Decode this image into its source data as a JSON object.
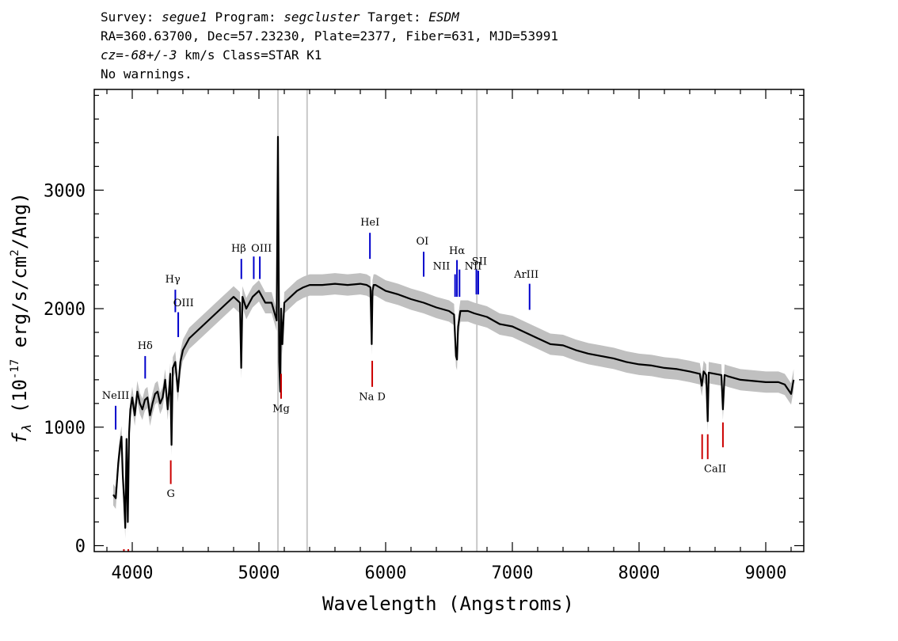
{
  "header": {
    "survey_label": "Survey:",
    "survey": "segue1",
    "program_label": "Program:",
    "program": "segcluster",
    "target_label": "Target:",
    "target": "ESDM",
    "line2": "RA=360.63700, Dec=57.23230, Plate=2377, Fiber=631, MJD=53991",
    "cz_label": "cz",
    "cz_value": "=-68+/-3",
    "cz_rest": " km/s Class=STAR K1",
    "warnings": "No warnings."
  },
  "colors": {
    "spectrum": "#000000",
    "error_band": "#c0c0c0",
    "emission": "#0000cc",
    "absorption": "#cc0000",
    "masked": "#c8c8c8"
  },
  "chart_data": {
    "type": "line",
    "xlabel": "Wavelength (Angstroms)",
    "ylabel": "f_λ (10⁻¹⁷ erg/s/cm²/Ang)",
    "ylabel_parts": [
      "f",
      "λ",
      " (10",
      "-17",
      " erg/s/cm",
      "2",
      "/Ang)"
    ],
    "xlim": [
      3700,
      9300
    ],
    "ylim": [
      -50,
      3850
    ],
    "x_ticks": [
      4000,
      5000,
      6000,
      7000,
      8000,
      9000
    ],
    "y_ticks": [
      0,
      1000,
      2000,
      3000
    ],
    "masked_regions": [
      5150,
      5380,
      6720
    ],
    "spectrum": {
      "x": [
        3850,
        3870,
        3890,
        3905,
        3915,
        3925,
        3935,
        3945,
        3955,
        3965,
        3975,
        3985,
        4000,
        4020,
        4040,
        4060,
        4080,
        4100,
        4120,
        4140,
        4160,
        4180,
        4200,
        4220,
        4240,
        4260,
        4280,
        4300,
        4310,
        4320,
        4340,
        4360,
        4380,
        4400,
        4450,
        4500,
        4550,
        4600,
        4650,
        4700,
        4750,
        4800,
        4850,
        4860,
        4870,
        4900,
        4950,
        5000,
        5050,
        5100,
        5140,
        5150,
        5160,
        5168,
        5175,
        5185,
        5200,
        5250,
        5300,
        5350,
        5400,
        5500,
        5600,
        5700,
        5800,
        5850,
        5880,
        5890,
        5896,
        5905,
        5920,
        6000,
        6100,
        6200,
        6300,
        6400,
        6500,
        6540,
        6555,
        6563,
        6572,
        6590,
        6650,
        6700,
        6800,
        6900,
        7000,
        7100,
        7200,
        7300,
        7400,
        7500,
        7600,
        7700,
        7800,
        7900,
        8000,
        8100,
        8200,
        8300,
        8400,
        8480,
        8495,
        8510,
        8530,
        8542,
        8550,
        8600,
        8650,
        8662,
        8675,
        8700,
        8800,
        8900,
        9000,
        9100,
        9150,
        9200,
        9220
      ],
      "y": [
        430,
        400,
        700,
        850,
        920,
        600,
        400,
        150,
        900,
        200,
        950,
        1150,
        1250,
        1100,
        1300,
        1200,
        1150,
        1230,
        1250,
        1100,
        1200,
        1280,
        1300,
        1200,
        1250,
        1400,
        1150,
        1450,
        850,
        1500,
        1550,
        1300,
        1550,
        1650,
        1750,
        1800,
        1850,
        1900,
        1950,
        2000,
        2050,
        2100,
        2050,
        1500,
        2100,
        2000,
        2100,
        2150,
        2050,
        2050,
        1900,
        3450,
        1550,
        1300,
        2000,
        1700,
        2050,
        2100,
        2150,
        2180,
        2200,
        2200,
        2210,
        2200,
        2210,
        2200,
        2180,
        1700,
        2150,
        2200,
        2200,
        2150,
        2120,
        2080,
        2050,
        2010,
        1980,
        1950,
        1600,
        1570,
        1850,
        1980,
        1980,
        1960,
        1930,
        1870,
        1850,
        1800,
        1750,
        1700,
        1690,
        1650,
        1620,
        1600,
        1580,
        1550,
        1530,
        1520,
        1500,
        1490,
        1470,
        1450,
        1350,
        1470,
        1440,
        1050,
        1460,
        1450,
        1440,
        1150,
        1440,
        1430,
        1400,
        1390,
        1380,
        1380,
        1360,
        1280,
        1400
      ],
      "error": 90
    },
    "emission_lines": [
      {
        "label": "NeIII",
        "x": 3869,
        "y_top": 1180,
        "y_bot": 980
      },
      {
        "label": "Hδ",
        "x": 4102,
        "y_top": 1600,
        "y_bot": 1410
      },
      {
        "label": "Hγ",
        "x": 4340,
        "y_top": 2160,
        "y_bot": 1970
      },
      {
        "label": "OIII",
        "x": 4363,
        "y_top": 1970,
        "y_bot": 1760
      },
      {
        "label": "Hβ",
        "x": 4861,
        "y_top": 2420,
        "y_bot": 2250
      },
      {
        "label": "OIII",
        "x": 4959,
        "y_top": 2440,
        "y_bot": 2250
      },
      {
        "label": "",
        "x": 5007,
        "y_top": 2440,
        "y_bot": 2250
      },
      {
        "label": "HeI",
        "x": 5876,
        "y_top": 2640,
        "y_bot": 2420
      },
      {
        "label": "OI",
        "x": 6300,
        "y_top": 2480,
        "y_bot": 2270
      },
      {
        "label": "NII",
        "x": 6548,
        "y_top": 2290,
        "y_bot": 2100
      },
      {
        "label": "Hα",
        "x": 6563,
        "y_top": 2410,
        "y_bot": 2100
      },
      {
        "label": "NII",
        "x": 6583,
        "y_top": 2330,
        "y_bot": 2100
      },
      {
        "label": "SII",
        "x": 6716,
        "y_top": 2330,
        "y_bot": 2120
      },
      {
        "label": "",
        "x": 6731,
        "y_top": 2320,
        "y_bot": 2120
      },
      {
        "label": "ArIII",
        "x": 7136,
        "y_top": 2210,
        "y_bot": 1990
      }
    ],
    "emission_labels": [
      {
        "text": "NeIII",
        "x": 3869,
        "y": 1240
      },
      {
        "text": "Hδ",
        "x": 4102,
        "y": 1660
      },
      {
        "text": "Hγ",
        "x": 4320,
        "y": 2220
      },
      {
        "text": "OIII",
        "x": 4405,
        "y": 2020
      },
      {
        "text": "Hβ",
        "x": 4840,
        "y": 2480
      },
      {
        "text": "OIII",
        "x": 5020,
        "y": 2480
      },
      {
        "text": "HeI",
        "x": 5876,
        "y": 2700
      },
      {
        "text": "OI",
        "x": 6290,
        "y": 2540
      },
      {
        "text": "NII",
        "x": 6440,
        "y": 2330
      },
      {
        "text": "Hα",
        "x": 6563,
        "y": 2460
      },
      {
        "text": "NII",
        "x": 6690,
        "y": 2330
      },
      {
        "text": "SII",
        "x": 6740,
        "y": 2370
      },
      {
        "text": "ArIII",
        "x": 7110,
        "y": 2260
      }
    ],
    "absorption_lines": [
      {
        "label": "",
        "x": 3934,
        "y_top": -30,
        "y_bot": -200
      },
      {
        "label": "",
        "x": 3969,
        "y_top": -30,
        "y_bot": -200
      },
      {
        "label": "G",
        "x": 4304,
        "y_top": 720,
        "y_bot": 520
      },
      {
        "label": "Mg",
        "x": 5175,
        "y_top": 1450,
        "y_bot": 1240
      },
      {
        "label": "Na D",
        "x": 5894,
        "y_top": 1560,
        "y_bot": 1340
      },
      {
        "label": "",
        "x": 8498,
        "y_top": 940,
        "y_bot": 730
      },
      {
        "label": "",
        "x": 8542,
        "y_top": 940,
        "y_bot": 730
      },
      {
        "label": "CaII",
        "x": 8662,
        "y_top": 1040,
        "y_bot": 830
      }
    ],
    "absorption_labels": [
      {
        "text": "G",
        "x": 4304,
        "y": 410
      },
      {
        "text": "Mg",
        "x": 5175,
        "y": 1130
      },
      {
        "text": "Na D",
        "x": 5894,
        "y": 1230
      },
      {
        "text": "CaII",
        "x": 8600,
        "y": 620
      }
    ]
  }
}
